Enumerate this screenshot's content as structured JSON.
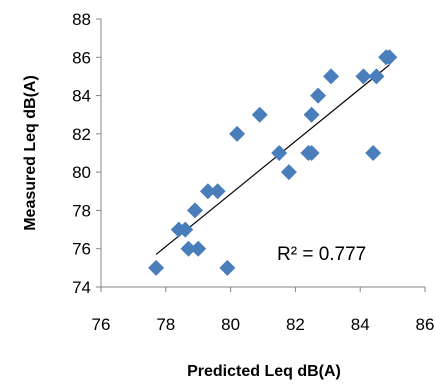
{
  "chart_data": {
    "type": "scatter",
    "xlabel": "Predicted Leq dB(A)",
    "ylabel": "Measured Leq dB(A)",
    "xlim": [
      76,
      86
    ],
    "ylim": [
      74,
      88
    ],
    "xticks": [
      "76",
      "78",
      "80",
      "82",
      "84",
      "86"
    ],
    "yticks": [
      "74",
      "76",
      "78",
      "80",
      "82",
      "84",
      "86",
      "88"
    ],
    "grid": false,
    "legend": "none",
    "marker_color": "#4a7ebb",
    "trendline": {
      "type": "linear",
      "x_start": 77.7,
      "y_start": 75.7,
      "x_end": 84.9,
      "y_end": 85.6,
      "color": "#000000"
    },
    "annotation": "R² = 0.777",
    "points": [
      {
        "x": 77.7,
        "y": 75
      },
      {
        "x": 78.4,
        "y": 77
      },
      {
        "x": 78.6,
        "y": 77
      },
      {
        "x": 78.7,
        "y": 76
      },
      {
        "x": 78.9,
        "y": 78
      },
      {
        "x": 79.0,
        "y": 76
      },
      {
        "x": 79.3,
        "y": 79
      },
      {
        "x": 79.6,
        "y": 79
      },
      {
        "x": 79.9,
        "y": 75
      },
      {
        "x": 80.2,
        "y": 82
      },
      {
        "x": 80.9,
        "y": 83
      },
      {
        "x": 81.5,
        "y": 81
      },
      {
        "x": 81.8,
        "y": 80
      },
      {
        "x": 82.4,
        "y": 81
      },
      {
        "x": 82.5,
        "y": 83
      },
      {
        "x": 82.5,
        "y": 81
      },
      {
        "x": 82.7,
        "y": 84
      },
      {
        "x": 83.1,
        "y": 85
      },
      {
        "x": 84.1,
        "y": 85
      },
      {
        "x": 84.4,
        "y": 81
      },
      {
        "x": 84.5,
        "y": 85
      },
      {
        "x": 84.8,
        "y": 86
      },
      {
        "x": 84.9,
        "y": 86
      }
    ]
  }
}
